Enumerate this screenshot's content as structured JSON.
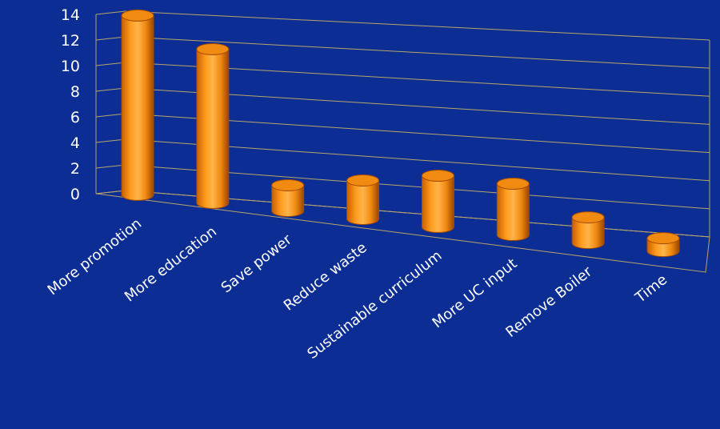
{
  "chart_data": {
    "type": "bar",
    "style": "3d-cylinder",
    "categories": [
      "More promotion",
      "More education",
      "Save power",
      "Reduce waste",
      "Sustainable curriculum",
      "More UC input",
      "Remove Boiler",
      "Time"
    ],
    "values": [
      14,
      12,
      2,
      3,
      4,
      4,
      2,
      1
    ],
    "ylim": [
      0,
      14
    ],
    "yticks": [
      "0",
      "2",
      "4",
      "6",
      "8",
      "10",
      "12",
      "14"
    ],
    "grid": true,
    "legend": "none",
    "colors": {
      "background": "#0b2d94",
      "bar": "#ff9a14",
      "gridline": "#b9a56a",
      "text": "#ffffff"
    }
  }
}
